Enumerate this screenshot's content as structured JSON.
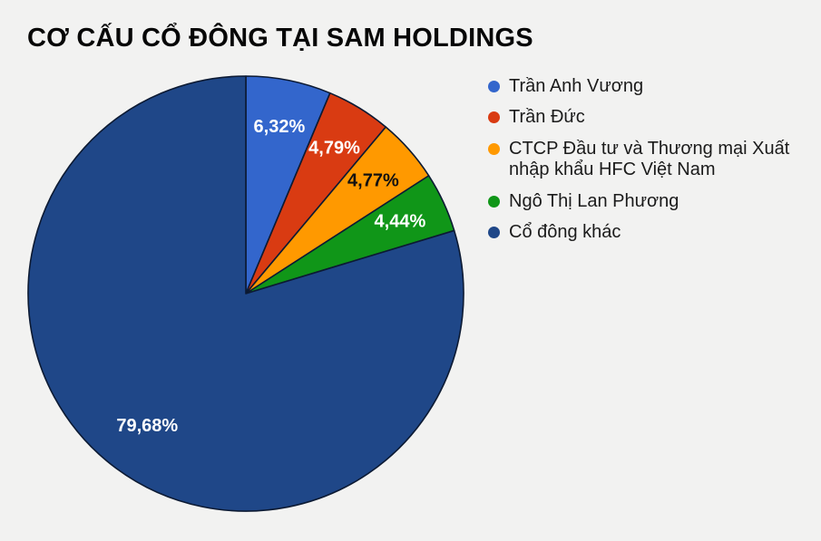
{
  "title": "CƠ CẤU CỔ ĐÔNG TẠI SAM HOLDINGS",
  "chart_data": {
    "type": "pie",
    "title": "CƠ CẤU CỔ ĐÔNG TẠI SAM HOLDINGS",
    "unit": "%",
    "decimal_separator": ",",
    "start_angle_deg": 0,
    "direction": "clockwise",
    "legend_position": "right",
    "total": 100,
    "slices": [
      {
        "label": "Trần Anh Vương",
        "value": 6.32,
        "display": "6,32%",
        "color": "#3366cc",
        "label_color": "#ffffff"
      },
      {
        "label": "Trần Đức",
        "value": 4.79,
        "display": "4,79%",
        "color": "#d93b12",
        "label_color": "#ffffff"
      },
      {
        "label": "CTCP Đầu tư và Thương mại Xuất nhập khẩu HFC Việt Nam",
        "value": 4.77,
        "display": "4,77%",
        "color": "#ff9900",
        "label_color": "#111111"
      },
      {
        "label": "Ngô Thị Lan Phương",
        "value": 4.44,
        "display": "4,44%",
        "color": "#109618",
        "label_color": "#ffffff"
      },
      {
        "label": "Cổ đông khác",
        "value": 79.68,
        "display": "79,68%",
        "color": "#1f4788",
        "label_color": "#ffffff"
      }
    ]
  },
  "colors": {
    "background": "#f2f2f1",
    "title_text": "#070707",
    "legend_text": "#1b1b1b",
    "slice_stroke": "#0c1a33"
  }
}
